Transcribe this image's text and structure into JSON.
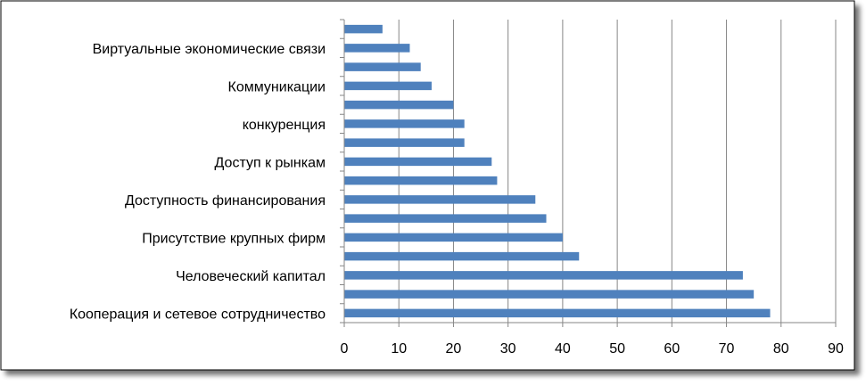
{
  "chart_data": {
    "type": "bar",
    "orientation": "horizontal",
    "categories": [
      "Кооперация и сетевое сотрудничество",
      "",
      "Человеческий капитал",
      "",
      "Присутствие крупных фирм",
      "",
      "Доступность финансирования",
      "",
      "Доступ к рынкам",
      "",
      "конкуренция",
      "",
      "Коммуникации",
      "",
      "Виртуальные экономические связи",
      ""
    ],
    "values": [
      78,
      75,
      73,
      43,
      40,
      37,
      35,
      28,
      27,
      22,
      22,
      20,
      16,
      14,
      12,
      7
    ],
    "title": "",
    "xlabel": "",
    "ylabel": "",
    "xlim": [
      0,
      90
    ],
    "x_ticks": [
      0,
      10,
      20,
      30,
      40,
      50,
      60,
      70,
      80,
      90
    ],
    "grid": "vertical",
    "legend": "none",
    "colors": {
      "bar": "#4f81bd",
      "bar_edge": "#3a6aa3",
      "grid": "#868686",
      "axis": "#868686",
      "frame": "#000000",
      "shadow": "#000000"
    }
  }
}
